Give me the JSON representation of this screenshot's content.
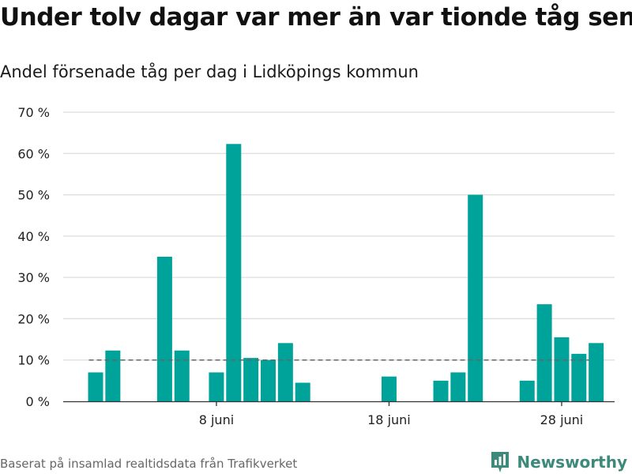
{
  "header": {
    "title": "Under tolv dagar var mer än var tionde tåg sent",
    "subtitle": "Andel försenade tåg per dag i Lidköpings kommun"
  },
  "footer": {
    "source": "Baserat på insamlad realtidsdata från Trafikverket",
    "brand": "Newsworthy"
  },
  "colors": {
    "bar": "#00a39a",
    "grid": "#dddddd",
    "reference_line": "#666666",
    "axis": "#333333",
    "brand": "#3d8a7a"
  },
  "chart_data": {
    "type": "bar",
    "title": "Under tolv dagar var mer än var tionde tåg sent",
    "subtitle": "Andel försenade tåg per dag i Lidköpings kommun",
    "xlabel": "",
    "ylabel": "",
    "unit": "%",
    "categories": [
      "1 juni",
      "2 juni",
      "3 juni",
      "4 juni",
      "5 juni",
      "6 juni",
      "7 juni",
      "8 juni",
      "9 juni",
      "10 juni",
      "11 juni",
      "12 juni",
      "13 juni",
      "14 juni",
      "15 juni",
      "16 juni",
      "17 juni",
      "18 juni",
      "19 juni",
      "20 juni",
      "21 juni",
      "22 juni",
      "23 juni",
      "24 juni",
      "25 juni",
      "26 juni",
      "27 juni",
      "28 juni",
      "29 juni",
      "30 juni"
    ],
    "values": [
      7,
      12.3,
      0,
      0,
      35,
      12.3,
      0,
      7,
      62.3,
      10.5,
      10,
      14.1,
      4.5,
      0,
      0,
      0,
      0,
      6,
      0,
      0,
      5,
      7,
      50,
      0,
      0,
      5,
      23.5,
      15.5,
      11.5,
      14.1
    ],
    "yticks": [
      0,
      10,
      20,
      30,
      40,
      50,
      60,
      70
    ],
    "ytick_labels": [
      "0 %",
      "10 %",
      "20 %",
      "30 %",
      "40 %",
      "50 %",
      "60 %",
      "70 %"
    ],
    "xtick_labels": [
      {
        "index": 7,
        "label": "8 juni"
      },
      {
        "index": 17,
        "label": "18 juni"
      },
      {
        "index": 27,
        "label": "28 juni"
      }
    ],
    "ylim": [
      0,
      70
    ],
    "reference_line": 10,
    "grid": true,
    "legend": "none"
  }
}
